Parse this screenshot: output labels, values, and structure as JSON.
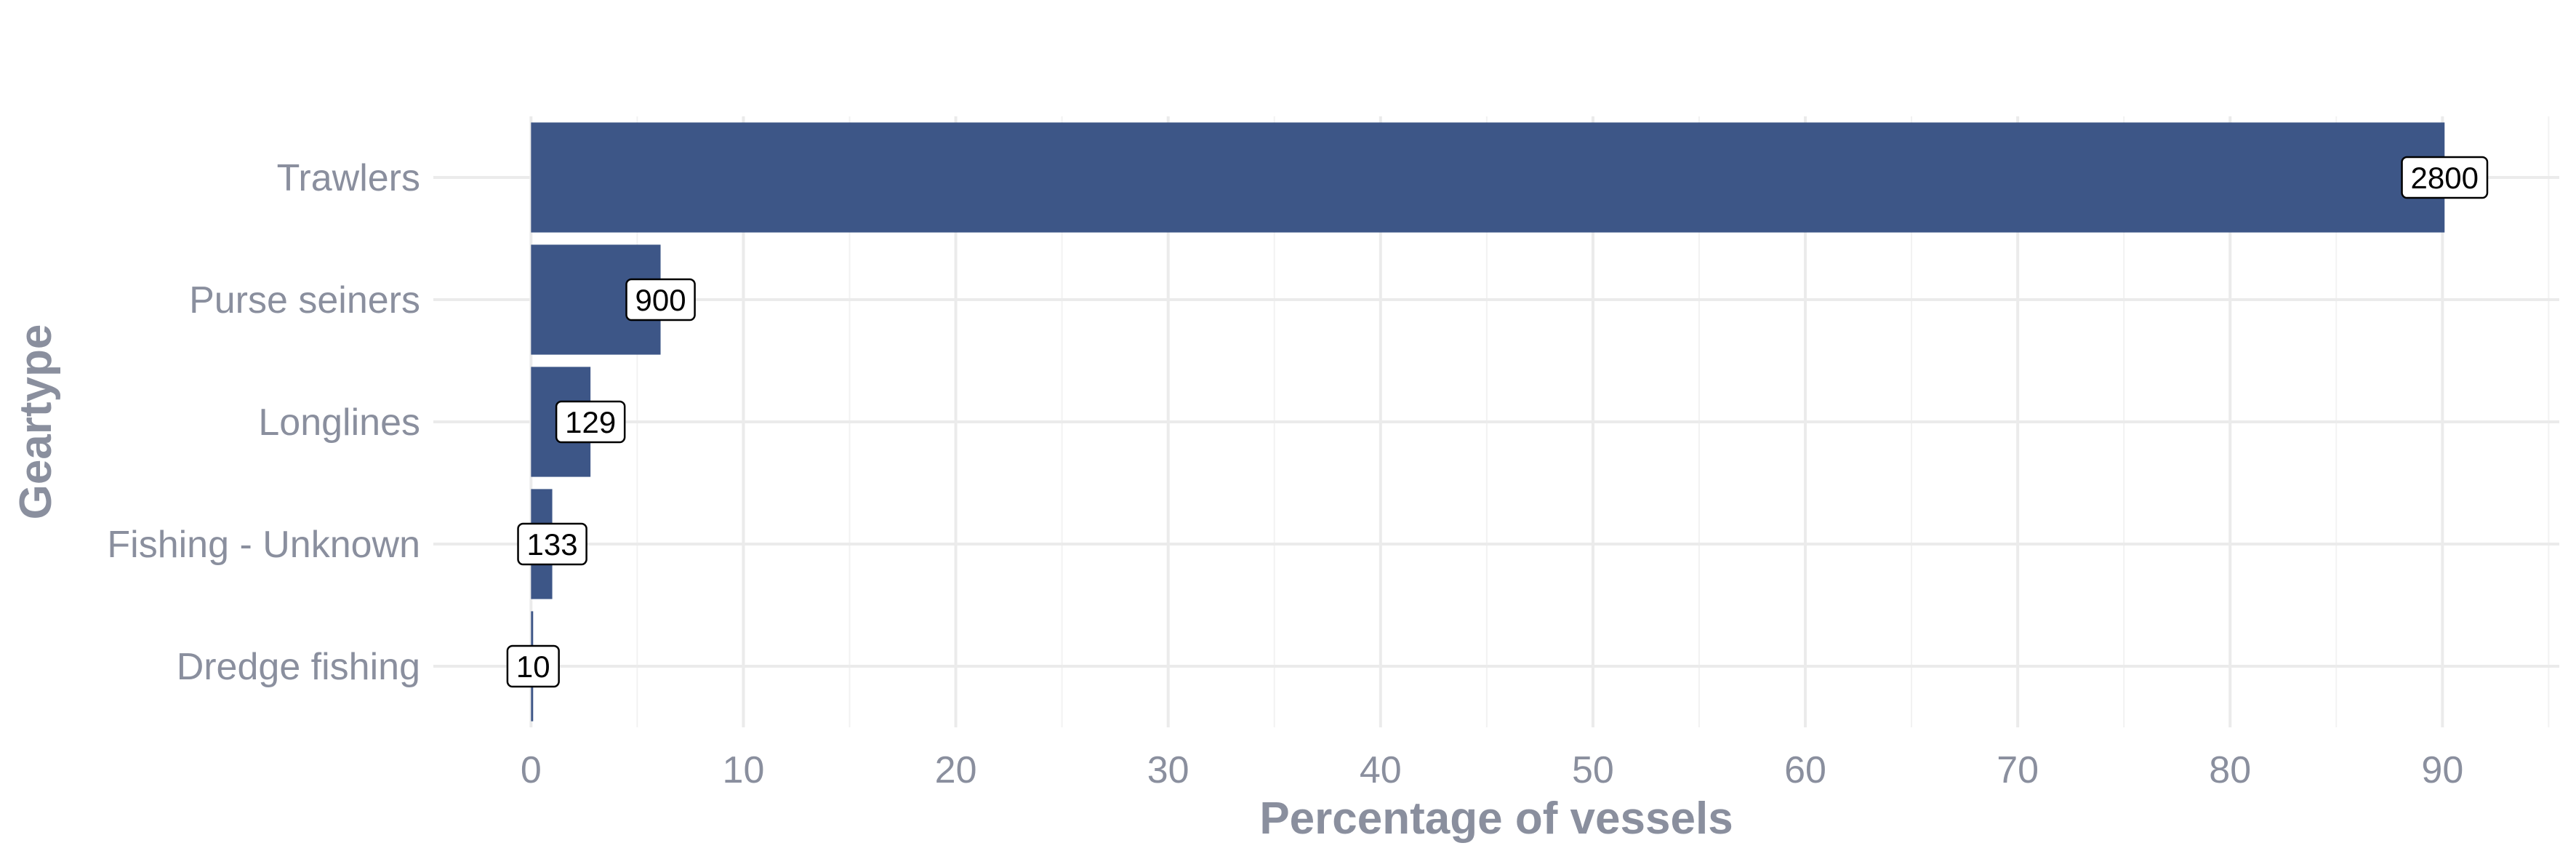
{
  "chart_data": {
    "type": "bar",
    "orientation": "horizontal",
    "categories": [
      "Trawlers",
      "Purse seiners",
      "Longlines",
      "Fishing - Unknown",
      "Dredge fishing"
    ],
    "values": [
      90.1,
      6.1,
      2.8,
      1.0,
      0.1
    ],
    "data_labels": [
      "2800",
      "900",
      "129",
      "133",
      "10"
    ],
    "xlabel": "Percentage of vessels",
    "ylabel": "Geartype",
    "xlim": [
      -4.6,
      95.5
    ],
    "x_ticks": [
      0,
      10,
      20,
      30,
      40,
      50,
      60,
      70,
      80,
      90
    ],
    "x_tick_labels": [
      "0",
      "10",
      "20",
      "30",
      "40",
      "50",
      "60",
      "70",
      "80",
      "90"
    ],
    "grid": true,
    "bar_color": "#3d5687",
    "text_color": "#8a8f9e",
    "grid_color": "#ebebeb"
  }
}
